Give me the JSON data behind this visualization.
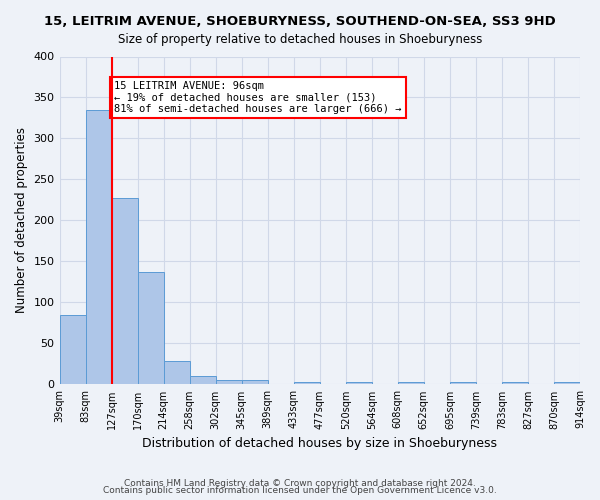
{
  "title": "15, LEITRIM AVENUE, SHOEBURYNESS, SOUTHEND-ON-SEA, SS3 9HD",
  "subtitle": "Size of property relative to detached houses in Shoeburyness",
  "xlabel": "Distribution of detached houses by size in Shoeburyness",
  "ylabel": "Number of detached properties",
  "footnote1": "Contains HM Land Registry data © Crown copyright and database right 2024.",
  "footnote2": "Contains public sector information licensed under the Open Government Licence v3.0.",
  "bin_labels": [
    "39sqm",
    "83sqm",
    "127sqm",
    "170sqm",
    "214sqm",
    "258sqm",
    "302sqm",
    "345sqm",
    "389sqm",
    "433sqm",
    "477sqm",
    "520sqm",
    "564sqm",
    "608sqm",
    "652sqm",
    "695sqm",
    "739sqm",
    "783sqm",
    "827sqm",
    "870sqm",
    "914sqm"
  ],
  "bar_values": [
    85,
    335,
    228,
    137,
    28,
    10,
    5,
    5,
    0,
    3,
    0,
    3,
    0,
    3,
    0,
    3,
    0,
    3,
    0,
    3
  ],
  "bar_color": "#aec6e8",
  "bar_edge_color": "#5b9bd5",
  "grid_color": "#d0d8e8",
  "background_color": "#eef2f8",
  "property_line_x": 1,
  "property_size": 96,
  "annotation_text": "15 LEITRIM AVENUE: 96sqm\n← 19% of detached houses are smaller (153)\n81% of semi-detached houses are larger (666) →",
  "annotation_box_color": "white",
  "annotation_box_edge": "red",
  "property_line_color": "red",
  "ylim": [
    0,
    400
  ],
  "yticks": [
    0,
    50,
    100,
    150,
    200,
    250,
    300,
    350,
    400
  ]
}
